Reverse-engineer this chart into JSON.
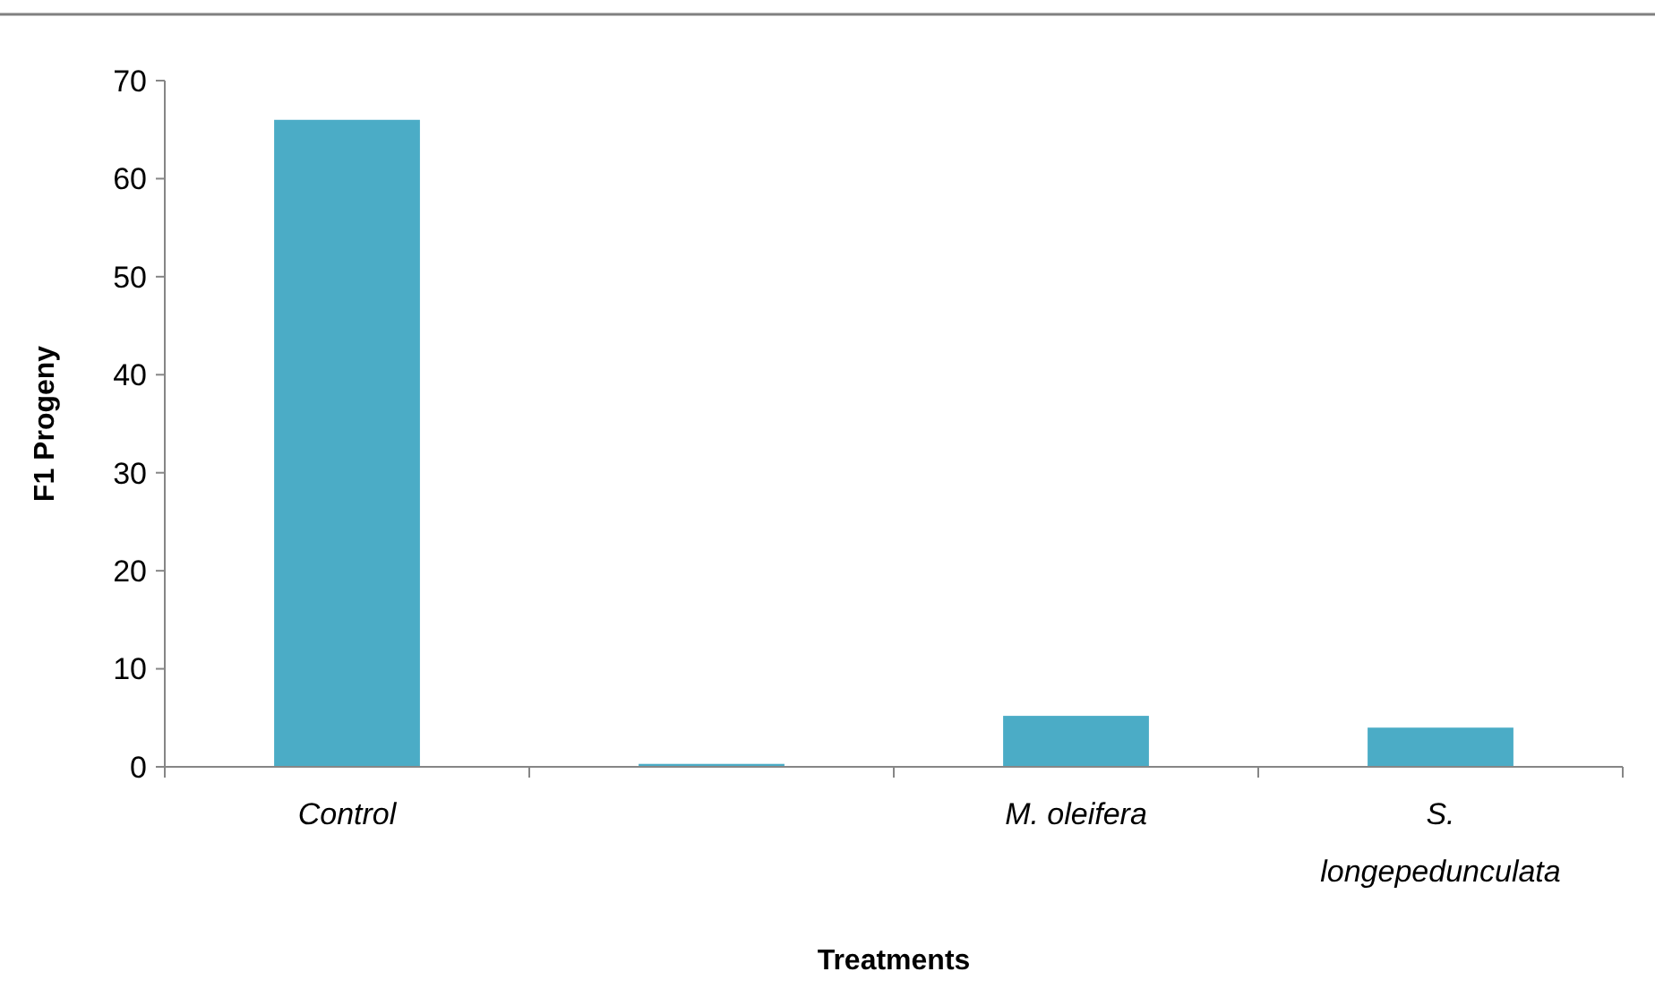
{
  "chart_data": {
    "type": "bar",
    "xlabel": "Treatments",
    "ylabel": "F1 Progeny",
    "categories": [
      "Control",
      null,
      "M. oleifera",
      "S. longepedunculata"
    ],
    "values": [
      66,
      0.3,
      5.2,
      4
    ],
    "color": "#4bacc6",
    "ylim": [
      0,
      70
    ],
    "yticks": [
      0,
      10,
      20,
      30,
      40,
      50,
      60,
      70
    ],
    "grid": false
  }
}
